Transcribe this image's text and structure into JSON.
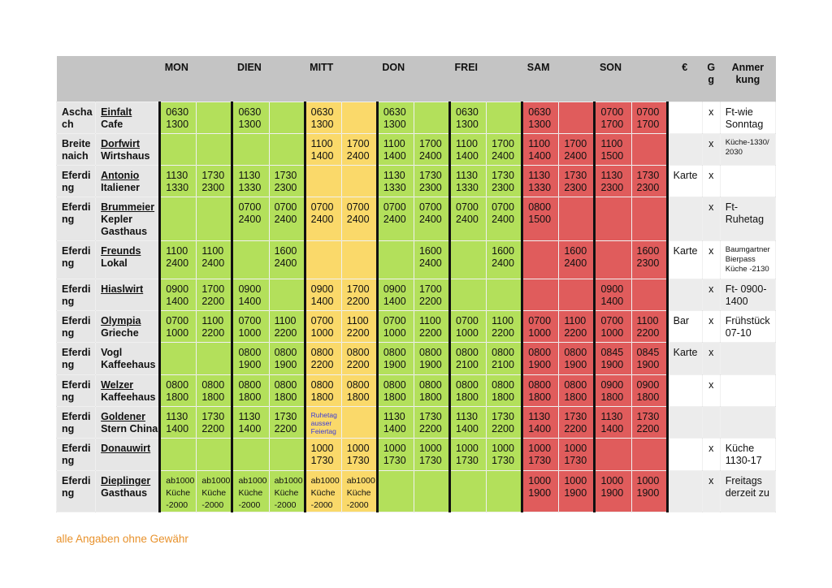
{
  "header": {
    "days": [
      "MON",
      "DIEN",
      "MITT",
      "DON",
      "FREI",
      "SAM",
      "SON"
    ],
    "euro": "€",
    "gg": "G\ng",
    "note": "Anmer\nkung"
  },
  "colors": {
    "weekday": "#b3e05b",
    "wednesday": "#fad96a",
    "weekend": "#e05c5c",
    "header": "#c4c4c4",
    "footer": "#e8922c"
  },
  "rows": [
    {
      "town": "Ascha\nch",
      "name": "Einfalt",
      "sub": "Cafe",
      "underline": true,
      "cells": [
        "0630\n1300",
        "",
        "0630\n1300",
        "",
        "0630\n1300",
        "",
        "0630\n1300",
        "",
        "0630\n1300",
        "",
        "0630\n1300",
        "",
        "0700\n1700",
        "0700\n1700"
      ],
      "euro": "",
      "gg": "x",
      "note": "Ft-wie\nSonntag",
      "note_small": false
    },
    {
      "town": "Breite\nnaich",
      "name": "Dorfwirt",
      "sub": "Wirtshaus",
      "underline": true,
      "cells": [
        "",
        "",
        "",
        "",
        "1100\n1400",
        "1700\n2400",
        "1100\n1400",
        "1700\n2400",
        "1100\n1400",
        "1700\n2400",
        "1100\n1400",
        "1700\n2400",
        "1100\n1500",
        ""
      ],
      "euro": "",
      "gg": "x",
      "note": "Küche-1330/\n2030",
      "note_small": true
    },
    {
      "town": "Eferdi\nng",
      "name": "Antonio",
      "sub": "Italiener",
      "underline": true,
      "cells": [
        "1130\n1330",
        "1730\n2300",
        "1130\n1330",
        "1730\n2300",
        "",
        "",
        "1130\n1330",
        "1730\n2300",
        "1130\n1330",
        "1730\n2300",
        "1130\n1330",
        "1730\n2300",
        "1130\n2300",
        "1730\n2300"
      ],
      "euro": "Karte",
      "gg": "x",
      "note": "",
      "note_small": false
    },
    {
      "town": "Eferdi\nng",
      "name": "Brummeier",
      "sub": "Kepler\nGasthaus",
      "underline": true,
      "cells": [
        "",
        "",
        "0700\n2400",
        "0700\n2400",
        "0700\n2400",
        "0700\n2400",
        "0700\n2400",
        "0700\n2400",
        "0700\n2400",
        "0700\n2400",
        "0800\n1500",
        "",
        "",
        ""
      ],
      "euro": "",
      "gg": "x",
      "note": "Ft-\nRuhetag",
      "note_small": false
    },
    {
      "town": "Eferdi\nng",
      "name": "Freunds",
      "sub": "Lokal",
      "underline": true,
      "cells": [
        "1100\n2400",
        "1100\n2400",
        "",
        "1600\n2400",
        "",
        "",
        "",
        "1600\n2400",
        "",
        "1600\n2400",
        "",
        "1600\n2400",
        "",
        "1600\n2300"
      ],
      "euro": "Karte",
      "gg": "x",
      "note": "Baumgartner\nBierpass\nKüche -2130",
      "note_small": true
    },
    {
      "town": "Eferdi\nng",
      "name": "Hiaslwirt",
      "sub": "",
      "underline": true,
      "cells": [
        "0900\n1400",
        "1700\n2200",
        "0900\n1400",
        "",
        "0900\n1400",
        "1700\n2200",
        "0900\n1400",
        "1700\n2200",
        "",
        "",
        "",
        "",
        "0900\n1400",
        ""
      ],
      "euro": "",
      "gg": "x",
      "note": "Ft- 0900-\n1400",
      "note_small": false
    },
    {
      "town": "Eferdi\nng",
      "name": "Olympia",
      "sub": "Grieche",
      "underline": true,
      "cells": [
        "0700\n1000",
        "1100\n2200",
        "0700\n1000",
        "1100\n2200",
        "0700\n1000",
        "1100\n2200",
        "0700\n1000",
        "1100\n2200",
        "0700\n1000",
        "1100\n2200",
        "0700\n1000",
        "1100\n2200",
        "0700\n1000",
        "1100\n2200"
      ],
      "euro": "Bar",
      "gg": "x",
      "note": "Frühstück\n07-10",
      "note_small": false
    },
    {
      "town": "Eferdi\nng",
      "name": "Vogl",
      "sub": "Kaffeehaus",
      "underline": false,
      "cells": [
        "",
        "",
        "0800\n1900",
        "0800\n1900",
        "0800\n2200",
        "0800\n2200",
        "0800\n1900",
        "0800\n1900",
        "0800\n2100",
        "0800\n2100",
        "0800\n1900",
        "0800\n1900",
        "0845\n1900",
        "0845\n1900"
      ],
      "euro": "Karte",
      "gg": "x",
      "note": "",
      "note_small": false
    },
    {
      "town": "Eferdi\nng",
      "name": "Welzer",
      "sub": "Kaffeehaus",
      "underline": true,
      "cells": [
        "0800\n1800",
        "0800\n1800",
        "0800\n1800",
        "0800\n1800",
        "0800\n1800",
        "0800\n1800",
        "0800\n1800",
        "0800\n1800",
        "0800\n1800",
        "0800\n1800",
        "0800\n1800",
        "0800\n1800",
        "0900\n1800",
        "0900\n1800"
      ],
      "euro": "",
      "gg": "x",
      "note": "",
      "note_small": false
    },
    {
      "town": "Eferdi\nng",
      "name": "Goldener",
      "sub": "Stern China",
      "underline": true,
      "cells": [
        "1130\n1400",
        "1730\n2200",
        "1130\n1400",
        "1730\n2200",
        "Ruhetag\nausser\nFeiertag",
        "",
        "1130\n1400",
        "1730\n2200",
        "1130\n1400",
        "1730\n2200",
        "1130\n1400",
        "1730\n2200",
        "1130\n1400",
        "1730\n2200"
      ],
      "euro": "",
      "gg": "",
      "note": "",
      "note_small": false
    },
    {
      "town": "Eferdi\nng",
      "name": "Donauwirt",
      "sub": "",
      "underline": true,
      "cells": [
        "",
        "",
        "",
        "",
        "1000\n1730",
        "1000\n1730",
        "1000\n1730",
        "1000\n1730",
        "1000\n1730",
        "1000\n1730",
        "1000\n1730",
        "1000\n1730",
        "",
        ""
      ],
      "euro": "",
      "gg": "x",
      "note": "Küche\n1130-17",
      "note_small": false
    },
    {
      "town": "Eferdi\nng",
      "name": "Dieplinger",
      "sub": "Gasthaus",
      "underline": true,
      "cells": [
        "ab1000\nKüche\n-2000",
        "ab1000\nKüche\n-2000",
        "ab1000\nKüche\n-2000",
        "ab1000\nKüche\n-2000",
        "ab1000\nKüche\n-2000",
        "ab1000\nKüche\n-2000",
        "",
        "",
        "",
        "",
        "1000\n1900",
        "1000\n1900",
        "1000\n1900",
        "1000\n1900"
      ],
      "euro": "",
      "gg": "x",
      "note": "Freitags\nderzeit zu",
      "note_small": false
    }
  ],
  "footer": "alle Angaben ohne Gewähr"
}
